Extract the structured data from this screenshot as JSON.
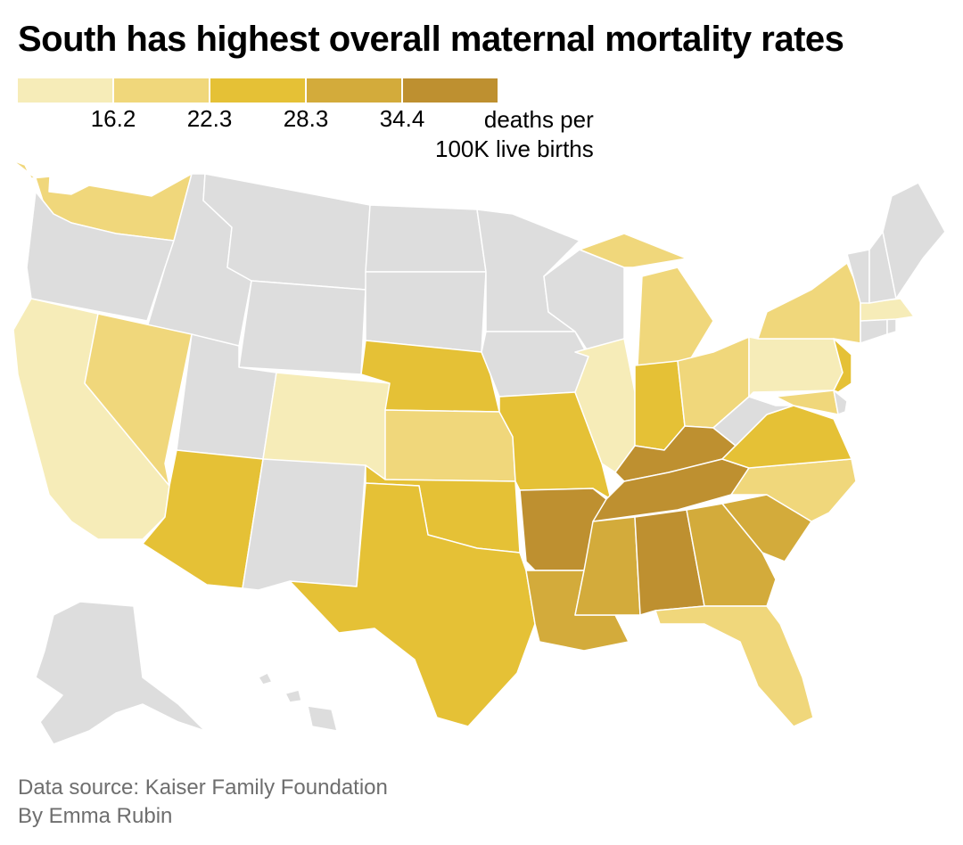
{
  "title": "South has highest overall maternal mortality rates",
  "legend": {
    "bins": [
      {
        "color": "#f6ecb8"
      },
      {
        "color": "#f0d77b"
      },
      {
        "color": "#e5c136"
      },
      {
        "color": "#d3ab3b"
      },
      {
        "color": "#be9030"
      }
    ],
    "ticks": [
      "16.2",
      "22.3",
      "28.3",
      "34.4"
    ],
    "unit_line1": "deaths per",
    "unit_line2": "100K live births"
  },
  "no_data_color": "#dddddd",
  "states": [
    {
      "id": "WA",
      "bin": 1
    },
    {
      "id": "OR",
      "bin": -1
    },
    {
      "id": "CA",
      "bin": 0
    },
    {
      "id": "ID",
      "bin": -1
    },
    {
      "id": "NV",
      "bin": 1
    },
    {
      "id": "MT",
      "bin": -1
    },
    {
      "id": "WY",
      "bin": -1
    },
    {
      "id": "UT",
      "bin": -1
    },
    {
      "id": "AZ",
      "bin": 2
    },
    {
      "id": "CO",
      "bin": 0
    },
    {
      "id": "NM",
      "bin": -1
    },
    {
      "id": "ND",
      "bin": -1
    },
    {
      "id": "SD",
      "bin": -1
    },
    {
      "id": "NE",
      "bin": 2
    },
    {
      "id": "KS",
      "bin": 1
    },
    {
      "id": "OK",
      "bin": 2
    },
    {
      "id": "TX",
      "bin": 2
    },
    {
      "id": "MN",
      "bin": -1
    },
    {
      "id": "IA",
      "bin": -1
    },
    {
      "id": "MO",
      "bin": 2
    },
    {
      "id": "AR",
      "bin": 4
    },
    {
      "id": "LA",
      "bin": 3
    },
    {
      "id": "WI",
      "bin": -1
    },
    {
      "id": "IL",
      "bin": 0
    },
    {
      "id": "MI",
      "bin": 1
    },
    {
      "id": "IN",
      "bin": 2
    },
    {
      "id": "OH",
      "bin": 1
    },
    {
      "id": "KY",
      "bin": 4
    },
    {
      "id": "TN",
      "bin": 4
    },
    {
      "id": "MS",
      "bin": 3
    },
    {
      "id": "AL",
      "bin": 4
    },
    {
      "id": "GA",
      "bin": 3
    },
    {
      "id": "FL",
      "bin": 1
    },
    {
      "id": "SC",
      "bin": 3
    },
    {
      "id": "NC",
      "bin": 1
    },
    {
      "id": "VA",
      "bin": 2
    },
    {
      "id": "WV",
      "bin": -1
    },
    {
      "id": "PA",
      "bin": 0
    },
    {
      "id": "NY",
      "bin": 1
    },
    {
      "id": "NJ",
      "bin": 2
    },
    {
      "id": "MD",
      "bin": 1
    },
    {
      "id": "DE",
      "bin": -1
    },
    {
      "id": "CT",
      "bin": -1
    },
    {
      "id": "RI",
      "bin": -1
    },
    {
      "id": "MA",
      "bin": 0
    },
    {
      "id": "VT",
      "bin": -1
    },
    {
      "id": "NH",
      "bin": -1
    },
    {
      "id": "ME",
      "bin": -1
    },
    {
      "id": "AK",
      "bin": -1
    },
    {
      "id": "HI",
      "bin": -1
    }
  ],
  "source": "Data source: Kaiser Family Foundation",
  "byline": "By Emma Rubin"
}
